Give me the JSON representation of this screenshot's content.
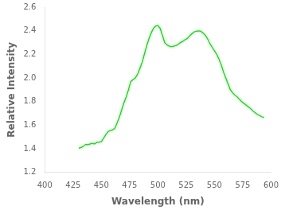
{
  "chart_data": {
    "type": "line",
    "xlabel": "Wavelength (nm)",
    "ylabel": "Relative Intensity",
    "x": [
      430,
      432,
      434,
      436,
      438,
      440,
      442,
      444,
      446,
      448,
      450,
      452,
      454,
      456,
      458,
      460,
      462,
      464,
      466,
      468,
      470,
      472,
      474,
      476,
      478,
      480,
      482,
      484,
      486,
      488,
      490,
      492,
      494,
      496,
      498,
      500,
      502,
      504,
      506,
      508,
      510,
      512,
      514,
      516,
      518,
      520,
      522,
      524,
      526,
      528,
      530,
      532,
      534,
      536,
      538,
      540,
      542,
      544,
      546,
      548,
      550,
      552,
      554,
      556,
      558,
      560,
      562,
      564,
      566,
      568,
      570,
      572,
      574,
      576,
      578,
      580,
      582,
      584,
      586,
      588,
      590,
      592,
      594
    ],
    "values": [
      1.405,
      1.41,
      1.42,
      1.435,
      1.435,
      1.44,
      1.445,
      1.44,
      1.455,
      1.455,
      1.46,
      1.49,
      1.52,
      1.545,
      1.555,
      1.56,
      1.575,
      1.62,
      1.67,
      1.73,
      1.79,
      1.84,
      1.9,
      1.97,
      1.985,
      2.0,
      2.03,
      2.08,
      2.13,
      2.2,
      2.27,
      2.33,
      2.38,
      2.42,
      2.44,
      2.445,
      2.42,
      2.36,
      2.3,
      2.28,
      2.27,
      2.265,
      2.27,
      2.275,
      2.285,
      2.3,
      2.31,
      2.325,
      2.335,
      2.355,
      2.375,
      2.39,
      2.395,
      2.4,
      2.395,
      2.38,
      2.36,
      2.33,
      2.29,
      2.26,
      2.23,
      2.2,
      2.16,
      2.11,
      2.05,
      2.0,
      1.95,
      1.9,
      1.875,
      1.855,
      1.84,
      1.82,
      1.8,
      1.785,
      1.77,
      1.755,
      1.74,
      1.72,
      1.705,
      1.69,
      1.68,
      1.67,
      1.665
    ],
    "color": "#00ee00",
    "xlim": [
      400,
      600
    ],
    "ylim": [
      1.2,
      2.6
    ],
    "xticks": [
      400,
      425,
      450,
      475,
      500,
      525,
      550,
      575,
      600
    ],
    "yticks": [
      1.2,
      1.4,
      1.6,
      1.8,
      {
        "value": 2,
        "label": "2.0"
      },
      2.2,
      2.4,
      2.6
    ],
    "grid": false
  }
}
